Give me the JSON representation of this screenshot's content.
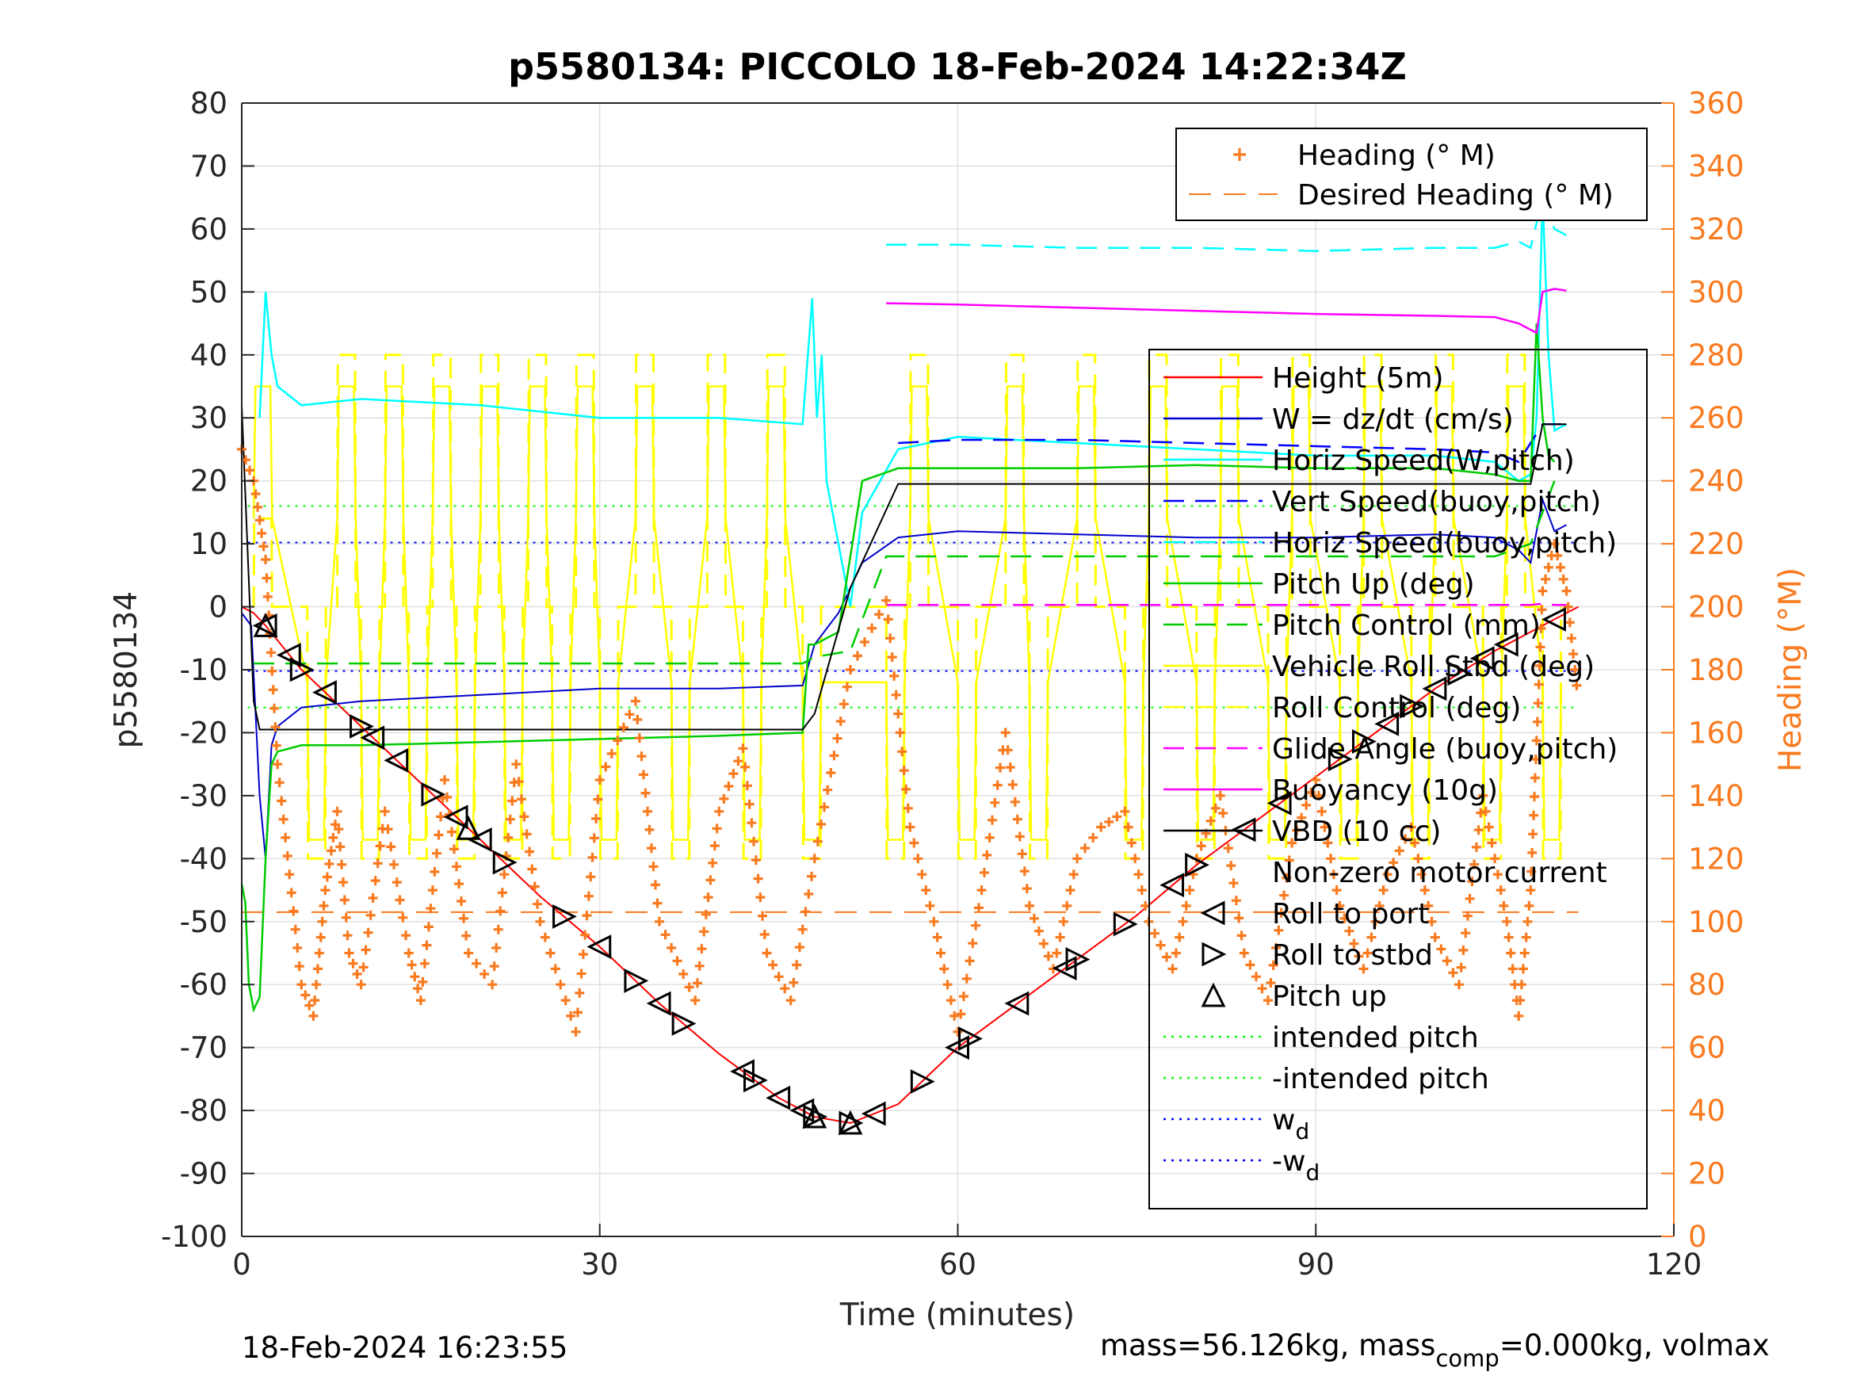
{
  "chart_data": {
    "type": "line",
    "title": "p5580134: PICCOLO 18-Feb-2024 14:22:34Z",
    "xlabel": "Time (minutes)",
    "ylabel_left": "p5580134",
    "ylabel_right": "Heading (°M)",
    "xlim": [
      0,
      120
    ],
    "ylim_left": [
      -100,
      80
    ],
    "ylim_right": [
      0,
      360
    ],
    "x_ticks": [
      "0",
      "30",
      "60",
      "90",
      "120"
    ],
    "y_ticks_left": [
      "80",
      "70",
      "60",
      "50",
      "40",
      "30",
      "20",
      "10",
      "0",
      "-10",
      "-20",
      "-30",
      "-40",
      "-50",
      "-60",
      "-70",
      "-80",
      "-90",
      "-100"
    ],
    "y_ticks_right": [
      "360",
      "340",
      "320",
      "300",
      "280",
      "260",
      "240",
      "220",
      "200",
      "180",
      "160",
      "140",
      "120",
      "100",
      "80",
      "60",
      "40",
      "20",
      "0"
    ],
    "grid": true,
    "footer_left": "18-Feb-2024 16:23:55",
    "footer_right": "mass=56.126kg, mass",
    "footer_right_sub": "comp",
    "footer_right_tail": "=0.000kg, volmax",
    "colors": {
      "height": "#ff0000",
      "w": "#0000cc",
      "horiz_speed": "#00ffff",
      "vert_speed": "#0000ff",
      "horiz_speed_buoy": "#00ffff",
      "pitch_up": "#00cc00",
      "pitch_control": "#00cc00",
      "roll": "#ffff00",
      "glide_angle": "#ff00ff",
      "buoyancy": "#ff00ff",
      "vbd": "#000000",
      "heading": "#f97a1f",
      "intended_pitch": "#00ff00",
      "wd": "#0000ff",
      "right_axis": "#f97a1f"
    },
    "legend_top": {
      "position": "top-right",
      "entries": [
        "Heading (° M)",
        "Desired Heading (° M)"
      ]
    },
    "legend_main": {
      "position": "right",
      "entries": [
        "Height (5m)",
        "W = dz/dt (cm/s)",
        "Horiz Speed(W,pitch)",
        "Vert Speed(buoy,pitch)",
        "Horiz Speed(buoy,pitch)",
        "Pitch Up (deg)",
        "Pitch Control (mm)",
        "Vehicle Roll Stbd (deg)",
        "Roll Control (deg)",
        "Glide Angle (buoy,pitch)",
        "Buoyancy (10g)",
        "VBD (10 cc)",
        "Non-zero motor current",
        "Roll to port",
        "Roll to stbd",
        "Pitch up",
        "intended pitch",
        "-intended pitch",
        "w",
        "-w"
      ],
      "sub_labels": {
        "w": "d",
        "-w": "d"
      }
    },
    "reference_lines": {
      "intended_pitch": 16,
      "neg_intended_pitch": -16,
      "wd": 10.2,
      "neg_wd": -10.2,
      "desired_heading_deg": 103,
      "glide_angle": 0.3
    },
    "series": [
      {
        "name": "Height (5m)",
        "x": [
          0,
          1,
          2,
          5,
          10,
          15,
          20,
          25,
          30,
          35,
          40,
          45,
          48,
          51,
          55,
          60,
          65,
          70,
          75,
          80,
          85,
          90,
          95,
          100,
          105,
          110,
          112
        ],
        "y": [
          0,
          -1,
          -3,
          -10,
          -19,
          -28,
          -37,
          -46,
          -54,
          -63,
          -71,
          -78,
          -81,
          -82,
          -79,
          -70,
          -63,
          -56,
          -49,
          -41,
          -34,
          -27,
          -20,
          -13,
          -7,
          -2,
          0
        ]
      },
      {
        "name": "W = dz/dt (cm/s)",
        "x": [
          0,
          0.8,
          1.5,
          2,
          2.5,
          3,
          5,
          10,
          20,
          30,
          40,
          47,
          48,
          50,
          52,
          55,
          60,
          70,
          80,
          90,
          100,
          105,
          107,
          108,
          109,
          110,
          111
        ],
        "y": [
          -1,
          -3,
          -30,
          -40,
          -22,
          -19,
          -16,
          -15,
          -14,
          -13,
          -13,
          -12.5,
          -6,
          -1,
          7,
          11,
          12,
          11.5,
          11,
          11,
          11.5,
          11,
          9,
          7,
          17,
          12,
          13
        ]
      },
      {
        "name": "Horiz Speed(W,pitch)",
        "x": [
          1.5,
          2,
          2.5,
          3,
          5,
          10,
          20,
          30,
          40,
          47,
          47.8,
          48.2,
          48.6,
          49,
          50,
          51,
          52,
          55,
          60,
          70,
          80,
          90,
          100,
          105,
          107,
          108,
          108.5,
          109,
          109.5,
          110,
          111
        ],
        "y": [
          30,
          50,
          40,
          35,
          32,
          33,
          32,
          30,
          30,
          29,
          49,
          30,
          40,
          20,
          10,
          0,
          15,
          25,
          27,
          26,
          25,
          24,
          24,
          23,
          20,
          21,
          30,
          65,
          40,
          28,
          29
        ]
      },
      {
        "name": "Vert Speed(buoy,pitch)",
        "x": [
          55,
          60,
          70,
          80,
          90,
          100,
          105,
          107,
          109,
          110,
          111
        ],
        "y": [
          26,
          26.5,
          26.5,
          26,
          25.5,
          25,
          24.5,
          23,
          29,
          29,
          29
        ]
      },
      {
        "name": "Horiz Speed(buoy,pitch)",
        "x": [
          54,
          60,
          70,
          80,
          90,
          100,
          105,
          107,
          108,
          109,
          110,
          111
        ],
        "y": [
          57.5,
          57.5,
          57,
          57,
          56.5,
          57,
          57,
          58,
          57,
          65,
          60,
          59
        ]
      },
      {
        "name": "Pitch Up (deg)",
        "x": [
          0,
          0.3,
          0.6,
          1,
          1.5,
          2,
          2.5,
          3,
          5,
          10,
          20,
          30,
          40,
          47,
          47.5,
          48,
          50,
          52,
          55,
          60,
          70,
          80,
          90,
          100,
          105,
          107,
          108,
          108.5,
          109,
          109.5,
          110
        ],
        "y": [
          -44,
          -47,
          -60,
          -64,
          -62,
          -40,
          -25,
          -23,
          -22,
          -22,
          -21.5,
          -21,
          -20.5,
          -20,
          -6,
          -6,
          -4,
          20,
          22,
          22,
          22,
          22.5,
          22,
          22,
          21,
          20,
          20,
          45,
          30,
          24,
          23
        ]
      },
      {
        "name": "Pitch Control (mm)",
        "x": [
          1,
          8,
          14,
          20,
          26,
          33,
          40,
          47,
          48,
          51,
          54,
          60,
          70,
          80,
          90,
          100,
          105,
          108,
          110
        ],
        "y": [
          -9,
          -9,
          -9,
          -9,
          -9,
          -9,
          -9,
          -9,
          -8,
          -7,
          8,
          8,
          8,
          8,
          8,
          8,
          8,
          10,
          20
        ]
      },
      {
        "name": "Glide Angle (buoy,pitch)",
        "x": [
          54,
          60,
          70,
          80,
          90,
          100,
          105,
          108,
          109,
          110,
          111
        ],
        "y": [
          0.3,
          0.3,
          0.3,
          0.3,
          0.3,
          0.3,
          0.3,
          0.3,
          0.5,
          0.3,
          0.3
        ]
      },
      {
        "name": "Buoyancy (10g)",
        "x": [
          54,
          60,
          70,
          80,
          90,
          100,
          105,
          107,
          108,
          108.5,
          109,
          110,
          111
        ],
        "y": [
          48.2,
          48,
          47.5,
          47,
          46.5,
          46.2,
          46,
          45,
          44,
          43.5,
          50,
          50.5,
          50.2
        ]
      },
      {
        "name": "VBD (10 cc)",
        "x": [
          0,
          1,
          1.5,
          47,
          48,
          51,
          55,
          60,
          70,
          80,
          90,
          100,
          105,
          108,
          109,
          110,
          111
        ],
        "y": [
          32,
          -15,
          -19.5,
          -19.5,
          -17,
          3,
          19.5,
          19.5,
          19.5,
          19.5,
          19.5,
          19.5,
          19.5,
          19.5,
          29,
          29,
          29
        ]
      },
      {
        "name": "Heading (° M)",
        "peaks": [
          [
            0,
            250
          ],
          [
            1,
            240
          ],
          [
            2,
            215
          ],
          [
            3,
            150
          ],
          [
            5,
            80
          ],
          [
            6,
            70
          ],
          [
            7,
            110
          ],
          [
            8,
            135
          ],
          [
            9,
            90
          ],
          [
            10,
            80
          ],
          [
            12,
            135
          ],
          [
            14,
            90
          ],
          [
            15,
            75
          ],
          [
            17,
            145
          ],
          [
            19,
            90
          ],
          [
            21,
            80
          ],
          [
            23,
            150
          ],
          [
            25,
            100
          ],
          [
            28,
            65
          ],
          [
            30,
            145
          ],
          [
            33,
            170
          ],
          [
            35,
            100
          ],
          [
            38,
            75
          ],
          [
            40,
            135
          ],
          [
            42,
            155
          ],
          [
            44,
            90
          ],
          [
            46,
            75
          ],
          [
            48,
            120
          ],
          [
            51,
            180
          ],
          [
            54,
            202
          ],
          [
            56,
            130
          ],
          [
            58,
            100
          ],
          [
            60,
            65
          ],
          [
            62,
            110
          ],
          [
            64,
            160
          ],
          [
            66,
            105
          ],
          [
            68,
            85
          ],
          [
            70,
            120
          ],
          [
            72,
            130
          ],
          [
            74,
            135
          ],
          [
            76,
            100
          ],
          [
            78,
            85
          ],
          [
            80,
            120
          ],
          [
            82,
            140
          ],
          [
            84,
            90
          ],
          [
            86,
            75
          ],
          [
            88,
            125
          ],
          [
            90,
            145
          ],
          [
            92,
            105
          ],
          [
            94,
            85
          ],
          [
            96,
            115
          ],
          [
            98,
            130
          ],
          [
            100,
            95
          ],
          [
            102,
            80
          ],
          [
            104,
            140
          ],
          [
            106,
            100
          ],
          [
            107,
            70
          ],
          [
            108,
            110
          ],
          [
            109,
            205
          ],
          [
            110,
            220
          ],
          [
            111,
            205
          ],
          [
            112,
            170
          ]
        ]
      },
      {
        "name": "Desired Heading (° M)",
        "x": [
          0,
          112
        ],
        "y": [
          103,
          103
        ]
      }
    ],
    "markers": {
      "roll_to_port_x": [
        2,
        4,
        7,
        11,
        13,
        18,
        20,
        30,
        35,
        42,
        45,
        47,
        53,
        60,
        65,
        69,
        78,
        84,
        87,
        96,
        100,
        104,
        106,
        110
      ],
      "roll_to_stbd_x": [
        5,
        10,
        16,
        22,
        27,
        33,
        37,
        43,
        48,
        51,
        57,
        61,
        70,
        74,
        80,
        92,
        94,
        98,
        102
      ],
      "pitch_up_x": [
        2,
        19,
        48,
        51
      ]
    }
  }
}
